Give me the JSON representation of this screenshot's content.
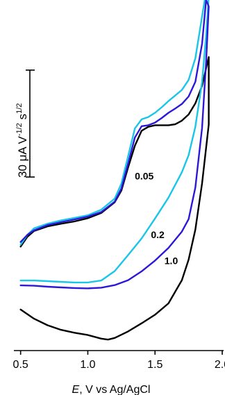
{
  "chart_data": {
    "type": "line",
    "title": "",
    "xlabel": "E, V vs Ag/AgCl",
    "xlabel_italic": "E",
    "xlabel_rest": ", V vs Ag/AgCl",
    "ylabel": "",
    "xlim": [
      0.45,
      2.0
    ],
    "ylim": [
      0,
      100
    ],
    "x_ticks": [
      0.5,
      1.0,
      1.5,
      2.0
    ],
    "x_tick_labels": [
      "0.5",
      "1.0",
      "1.5",
      "2.0"
    ],
    "grid": false,
    "legend": "none",
    "scale_bar": {
      "label_main": "30 μA V",
      "label_sup1": "-1/2",
      "label_mid": " s",
      "label_sup2": "1/2",
      "value": 30
    },
    "series": [
      {
        "name": "0.05",
        "color": "#000000",
        "forward": [
          [
            0.5,
            27.4
          ],
          [
            0.55,
            30.4
          ],
          [
            0.6,
            32.2
          ],
          [
            0.7,
            33.6
          ],
          [
            0.8,
            34.4
          ],
          [
            0.9,
            35.1
          ],
          [
            1.0,
            36.1
          ],
          [
            1.1,
            37.7
          ],
          [
            1.2,
            41.0
          ],
          [
            1.25,
            44.6
          ],
          [
            1.3,
            51.7
          ],
          [
            1.35,
            58.3
          ],
          [
            1.4,
            62.9
          ],
          [
            1.45,
            64.1
          ],
          [
            1.5,
            64.6
          ],
          [
            1.55,
            64.6
          ],
          [
            1.6,
            64.6
          ],
          [
            1.65,
            64.9
          ],
          [
            1.7,
            66.0
          ],
          [
            1.75,
            67.9
          ],
          [
            1.8,
            71.3
          ],
          [
            1.85,
            76.7
          ],
          [
            1.9,
            85.5
          ]
        ],
        "reverse": [
          [
            0.5,
            8.1
          ],
          [
            0.6,
            5.3
          ],
          [
            0.7,
            3.3
          ],
          [
            0.8,
            1.9
          ],
          [
            0.9,
            1.0
          ],
          [
            1.0,
            0.3
          ],
          [
            1.1,
            -0.8
          ],
          [
            1.15,
            -1.1
          ],
          [
            1.2,
            -0.6
          ],
          [
            1.3,
            1.4
          ],
          [
            1.4,
            3.9
          ],
          [
            1.5,
            6.5
          ],
          [
            1.6,
            10.0
          ],
          [
            1.7,
            17.1
          ],
          [
            1.75,
            23.4
          ],
          [
            1.8,
            32.6
          ],
          [
            1.85,
            46.8
          ],
          [
            1.9,
            64.8
          ]
        ]
      },
      {
        "name": "0.2",
        "color": "#1ac6e8",
        "forward": [
          [
            0.5,
            28.0
          ],
          [
            0.55,
            31.0
          ],
          [
            0.6,
            33.0
          ],
          [
            0.7,
            34.4
          ],
          [
            0.8,
            35.4
          ],
          [
            0.9,
            36.2
          ],
          [
            1.0,
            37.0
          ],
          [
            1.1,
            38.7
          ],
          [
            1.2,
            42.1
          ],
          [
            1.25,
            46.7
          ],
          [
            1.3,
            55.1
          ],
          [
            1.35,
            63.6
          ],
          [
            1.4,
            66.4
          ],
          [
            1.45,
            67.1
          ],
          [
            1.5,
            68.4
          ],
          [
            1.55,
            70.1
          ],
          [
            1.6,
            72.0
          ],
          [
            1.65,
            73.7
          ],
          [
            1.7,
            75.4
          ],
          [
            1.75,
            78.5
          ],
          [
            1.8,
            85.1
          ],
          [
            1.84,
            95.3
          ],
          [
            1.87,
            103.0
          ]
        ],
        "reverse": [
          [
            0.5,
            17.0
          ],
          [
            0.6,
            17.0
          ],
          [
            0.7,
            16.8
          ],
          [
            0.8,
            16.6
          ],
          [
            0.9,
            16.4
          ],
          [
            1.0,
            16.4
          ],
          [
            1.1,
            17.0
          ],
          [
            1.2,
            19.9
          ],
          [
            1.3,
            24.8
          ],
          [
            1.4,
            29.9
          ],
          [
            1.5,
            36.0
          ],
          [
            1.6,
            42.4
          ],
          [
            1.7,
            50.2
          ],
          [
            1.75,
            55.4
          ],
          [
            1.8,
            64.1
          ],
          [
            1.85,
            77.9
          ],
          [
            1.88,
            92.1
          ],
          [
            1.9,
            104.0
          ]
        ]
      },
      {
        "name": "1.0",
        "color": "#2d18d8",
        "forward": [
          [
            0.5,
            28.8
          ],
          [
            0.55,
            31.0
          ],
          [
            0.6,
            32.4
          ],
          [
            0.7,
            34.0
          ],
          [
            0.8,
            34.9
          ],
          [
            0.9,
            35.7
          ],
          [
            1.0,
            36.6
          ],
          [
            1.1,
            38.0
          ],
          [
            1.2,
            41.2
          ],
          [
            1.25,
            45.2
          ],
          [
            1.3,
            52.9
          ],
          [
            1.35,
            60.8
          ],
          [
            1.4,
            64.3
          ],
          [
            1.45,
            64.6
          ],
          [
            1.5,
            65.4
          ],
          [
            1.55,
            66.8
          ],
          [
            1.6,
            68.4
          ],
          [
            1.65,
            69.7
          ],
          [
            1.7,
            71.1
          ],
          [
            1.75,
            73.4
          ],
          [
            1.8,
            77.9
          ],
          [
            1.85,
            89.6
          ],
          [
            1.88,
            103.0
          ]
        ],
        "reverse": [
          [
            0.5,
            15.5
          ],
          [
            0.6,
            15.4
          ],
          [
            0.7,
            15.1
          ],
          [
            0.8,
            14.9
          ],
          [
            0.9,
            14.7
          ],
          [
            1.0,
            14.6
          ],
          [
            1.1,
            14.8
          ],
          [
            1.2,
            15.6
          ],
          [
            1.3,
            17.1
          ],
          [
            1.4,
            19.8
          ],
          [
            1.5,
            23.1
          ],
          [
            1.6,
            27.0
          ],
          [
            1.7,
            32.0
          ],
          [
            1.75,
            35.8
          ],
          [
            1.8,
            45.5
          ],
          [
            1.85,
            63.8
          ],
          [
            1.88,
            84.0
          ],
          [
            1.9,
            101.0
          ]
        ]
      }
    ],
    "curve_labels": [
      {
        "text": "0.05",
        "series": "0.05"
      },
      {
        "text": "0.2",
        "series": "0.2"
      },
      {
        "text": "1.0",
        "series": "1.0"
      }
    ]
  }
}
